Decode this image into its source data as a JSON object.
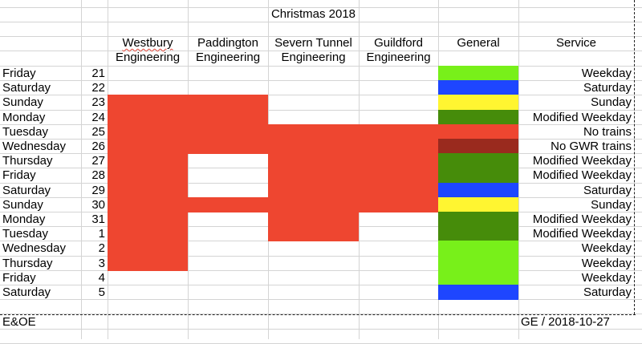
{
  "title": "Christmas 2018",
  "columns": {
    "westbury": [
      "Westbury",
      "Engineering"
    ],
    "paddington": [
      "Paddington",
      "Engineering"
    ],
    "severn": [
      "Severn Tunnel",
      "Engineering"
    ],
    "guildford": [
      "Guildford",
      "Engineering"
    ],
    "general": "General",
    "service": "Service"
  },
  "colors": {
    "engineering": "#ee4630",
    "weekday": "#78f01a",
    "saturday": "#1e46ff",
    "sunday": "#fff531",
    "modified_weekday": "#468c0a",
    "no_trains": "#ee4630",
    "no_gwr_trains": "#9a2a1e"
  },
  "rows": [
    {
      "day": "Friday",
      "date": "21",
      "westbury": false,
      "paddington": false,
      "severn": false,
      "guildford": false,
      "general": "weekday",
      "service": "Weekday"
    },
    {
      "day": "Saturday",
      "date": "22",
      "westbury": false,
      "paddington": false,
      "severn": false,
      "guildford": false,
      "general": "saturday",
      "service": "Saturday"
    },
    {
      "day": "Sunday",
      "date": "23",
      "westbury": true,
      "paddington": true,
      "severn": false,
      "guildford": false,
      "general": "sunday",
      "service": "Sunday"
    },
    {
      "day": "Monday",
      "date": "24",
      "westbury": true,
      "paddington": true,
      "severn": false,
      "guildford": false,
      "general": "modified_weekday",
      "service": "Modified Weekday"
    },
    {
      "day": "Tuesday",
      "date": "25",
      "westbury": true,
      "paddington": true,
      "severn": true,
      "guildford": true,
      "general": "no_trains",
      "service": "No trains"
    },
    {
      "day": "Wednesday",
      "date": "26",
      "westbury": true,
      "paddington": true,
      "severn": true,
      "guildford": true,
      "general": "no_gwr_trains",
      "service": "No GWR trains"
    },
    {
      "day": "Thursday",
      "date": "27",
      "westbury": true,
      "paddington": false,
      "severn": true,
      "guildford": true,
      "general": "modified_weekday",
      "service": "Modified Weekday"
    },
    {
      "day": "Friday",
      "date": "28",
      "westbury": true,
      "paddington": false,
      "severn": true,
      "guildford": true,
      "general": "modified_weekday",
      "service": "Modified Weekday"
    },
    {
      "day": "Saturday",
      "date": "29",
      "westbury": true,
      "paddington": false,
      "severn": true,
      "guildford": true,
      "general": "saturday",
      "service": "Saturday"
    },
    {
      "day": "Sunday",
      "date": "30",
      "westbury": true,
      "paddington": true,
      "severn": true,
      "guildford": true,
      "general": "sunday",
      "service": "Sunday"
    },
    {
      "day": "Monday",
      "date": "31",
      "westbury": true,
      "paddington": false,
      "severn": true,
      "guildford": false,
      "general": "modified_weekday",
      "service": "Modified Weekday"
    },
    {
      "day": "Tuesday",
      "date": "1",
      "westbury": true,
      "paddington": false,
      "severn": true,
      "guildford": false,
      "general": "modified_weekday",
      "service": "Modified Weekday"
    },
    {
      "day": "Wednesday",
      "date": "2",
      "westbury": true,
      "paddington": false,
      "severn": false,
      "guildford": false,
      "general": "weekday",
      "service": "Weekday"
    },
    {
      "day": "Thursday",
      "date": "3",
      "westbury": true,
      "paddington": false,
      "severn": false,
      "guildford": false,
      "general": "weekday",
      "service": "Weekday"
    },
    {
      "day": "Friday",
      "date": "4",
      "westbury": false,
      "paddington": false,
      "severn": false,
      "guildford": false,
      "general": "weekday",
      "service": "Weekday"
    },
    {
      "day": "Saturday",
      "date": "5",
      "westbury": false,
      "paddington": false,
      "severn": false,
      "guildford": false,
      "general": "saturday",
      "service": "Saturday"
    }
  ],
  "footer": {
    "left": "E&OE",
    "right": "GE / 2018-10-27"
  }
}
